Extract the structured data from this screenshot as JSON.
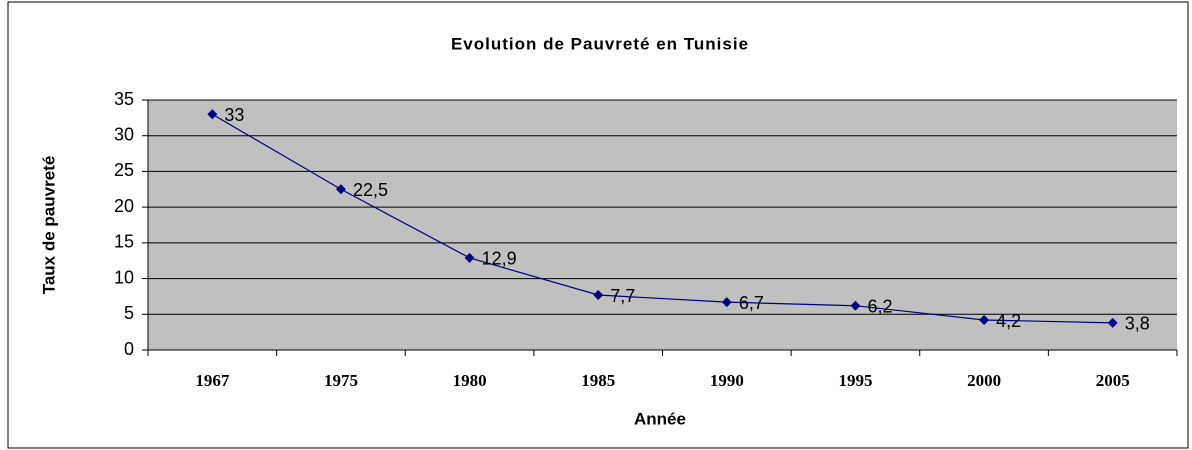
{
  "chart_data": {
    "type": "line",
    "title": "Evolution de Pauvreté en Tunisie",
    "x_label": "Année",
    "y_label": "Taux de pauvreté",
    "categories": [
      "1967",
      "1975",
      "1980",
      "1985",
      "1990",
      "1995",
      "2000",
      "2005"
    ],
    "values": [
      33,
      22.5,
      12.9,
      7.7,
      6.7,
      6.2,
      4.2,
      3.8
    ],
    "value_labels": [
      "33",
      "22,5",
      "12,9",
      "7,7",
      "6,7",
      "6,2",
      "4,2",
      "3,8"
    ],
    "color": "#000080",
    "ylim": [
      0,
      35
    ],
    "yticks": [
      0,
      5,
      10,
      15,
      20,
      25,
      30,
      35
    ],
    "grid": true
  }
}
